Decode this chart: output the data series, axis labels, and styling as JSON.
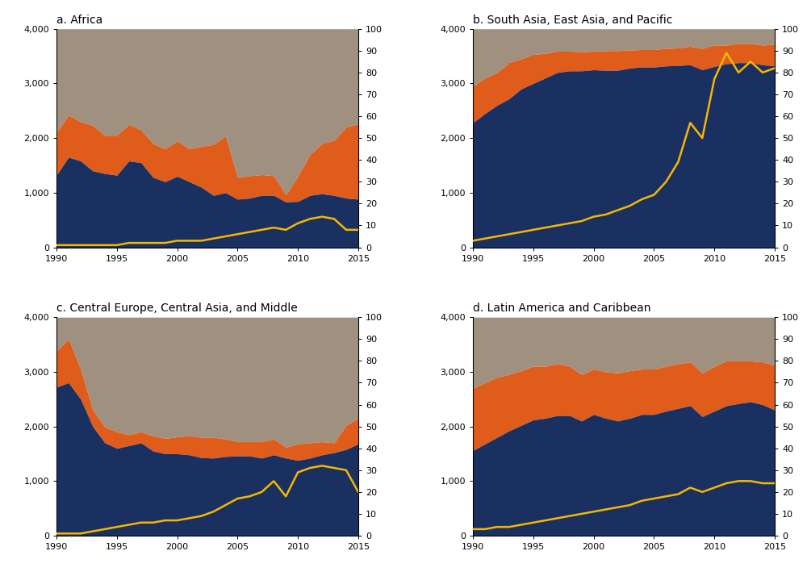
{
  "years": [
    1990,
    1991,
    1992,
    1993,
    1994,
    1995,
    1996,
    1997,
    1998,
    1999,
    2000,
    2001,
    2002,
    2003,
    2004,
    2005,
    2006,
    2007,
    2008,
    2009,
    2010,
    2011,
    2012,
    2013,
    2014,
    2015
  ],
  "africa": {
    "title": "a. Africa",
    "blue": [
      1320,
      1650,
      1580,
      1400,
      1350,
      1320,
      1580,
      1550,
      1280,
      1200,
      1300,
      1200,
      1100,
      950,
      1000,
      880,
      900,
      950,
      950,
      830,
      840,
      950,
      980,
      950,
      900,
      880
    ],
    "orange": [
      2100,
      2420,
      2300,
      2230,
      2050,
      2050,
      2250,
      2150,
      1900,
      1800,
      1950,
      1800,
      1850,
      1880,
      2040,
      1280,
      1310,
      1330,
      1310,
      960,
      1300,
      1700,
      1900,
      1960,
      2200,
      2260
    ],
    "line_r": [
      1,
      1,
      1,
      1,
      1,
      1,
      2,
      2,
      2,
      2,
      3,
      3,
      3,
      4,
      5,
      6,
      7,
      8,
      9,
      8,
      11,
      13,
      14,
      13,
      8,
      8
    ]
  },
  "south_asia": {
    "title": "b. South Asia, East Asia, and Pacific",
    "blue": [
      2280,
      2450,
      2600,
      2720,
      2900,
      3000,
      3100,
      3200,
      3230,
      3230,
      3250,
      3240,
      3240,
      3280,
      3300,
      3300,
      3320,
      3330,
      3340,
      3250,
      3310,
      3360,
      3380,
      3380,
      3340,
      3320
    ],
    "orange": [
      2950,
      3100,
      3200,
      3380,
      3450,
      3530,
      3550,
      3590,
      3590,
      3580,
      3590,
      3600,
      3600,
      3610,
      3620,
      3620,
      3640,
      3650,
      3680,
      3640,
      3700,
      3700,
      3730,
      3730,
      3700,
      3720
    ],
    "line_r": [
      3,
      4,
      5,
      6,
      7,
      8,
      9,
      10,
      11,
      12,
      14,
      15,
      17,
      19,
      22,
      24,
      30,
      39,
      57,
      50,
      77,
      89,
      80,
      85,
      80,
      82
    ]
  },
  "central_europe": {
    "title": "c. Central Europe, Central Asia, and Middle",
    "blue": [
      2720,
      2800,
      2500,
      2000,
      1700,
      1600,
      1650,
      1700,
      1550,
      1500,
      1500,
      1480,
      1430,
      1420,
      1450,
      1460,
      1460,
      1420,
      1480,
      1420,
      1380,
      1420,
      1480,
      1520,
      1580,
      1680
    ],
    "orange": [
      3380,
      3600,
      3050,
      2300,
      1990,
      1900,
      1850,
      1900,
      1830,
      1780,
      1810,
      1830,
      1800,
      1800,
      1770,
      1720,
      1720,
      1720,
      1770,
      1620,
      1680,
      1700,
      1720,
      1700,
      2020,
      2150
    ],
    "line_r": [
      1,
      1,
      1,
      2,
      3,
      4,
      5,
      6,
      6,
      7,
      7,
      8,
      9,
      11,
      14,
      17,
      18,
      20,
      25,
      18,
      29,
      31,
      32,
      31,
      30,
      20
    ]
  },
  "latin_america": {
    "title": "d. Latin America and Caribbean",
    "blue": [
      1560,
      1680,
      1800,
      1920,
      2020,
      2120,
      2150,
      2200,
      2200,
      2100,
      2220,
      2150,
      2100,
      2150,
      2220,
      2220,
      2280,
      2330,
      2380,
      2180,
      2280,
      2380,
      2420,
      2450,
      2400,
      2300
    ],
    "orange": [
      2700,
      2800,
      2900,
      2950,
      3020,
      3100,
      3100,
      3150,
      3100,
      2950,
      3050,
      3000,
      2980,
      3020,
      3050,
      3050,
      3100,
      3150,
      3180,
      2980,
      3100,
      3200,
      3200,
      3200,
      3180,
      3120
    ],
    "line_r": [
      3,
      3,
      4,
      4,
      5,
      6,
      7,
      8,
      9,
      10,
      11,
      12,
      13,
      14,
      16,
      17,
      18,
      19,
      22,
      20,
      22,
      24,
      25,
      25,
      24,
      24
    ]
  },
  "colors": {
    "gray": "#a09080",
    "orange": "#e05c1a",
    "blue": "#1a3060",
    "line": "#f5b800",
    "background": "#ffffff"
  },
  "ylim_left": [
    0,
    4000
  ],
  "ylim_right": [
    0,
    100
  ],
  "xlim": [
    1990,
    2015
  ],
  "yticks_left": [
    0,
    1000,
    2000,
    3000,
    4000
  ],
  "yticks_right": [
    0,
    10,
    20,
    30,
    40,
    50,
    60,
    70,
    80,
    90,
    100
  ],
  "xticks": [
    1990,
    1995,
    2000,
    2005,
    2010,
    2015
  ]
}
